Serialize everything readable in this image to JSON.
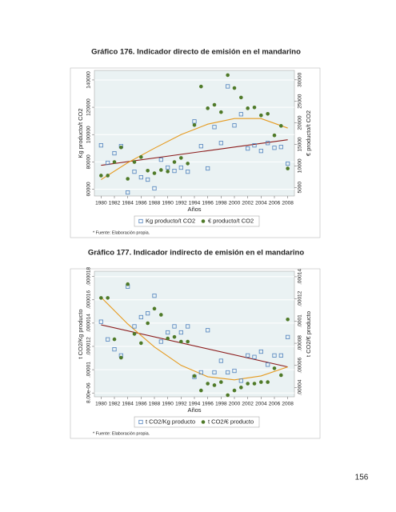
{
  "chart_data": [
    {
      "type": "scatter",
      "title": "Gráfico 176. Indicador directo de emisión en el mandarino",
      "x_label": "Años",
      "y_label": "Kg producto/t CO2",
      "y2_label": "€ producto/t CO2",
      "note": "* Fuente: Elaboración propia.",
      "x": [
        1980,
        1981,
        1982,
        1983,
        1984,
        1985,
        1986,
        1987,
        1988,
        1989,
        1990,
        1991,
        1992,
        1993,
        1994,
        1995,
        1996,
        1997,
        1998,
        1999,
        2000,
        2001,
        2002,
        2003,
        2004,
        2005,
        2006,
        2007,
        2008
      ],
      "xlim": [
        1979,
        2009
      ],
      "xticks": [
        1980,
        1982,
        1984,
        1986,
        1988,
        1990,
        1992,
        1994,
        1996,
        1998,
        2000,
        2002,
        2004,
        2006,
        2008
      ],
      "ylim": [
        55000,
        147000
      ],
      "yticks": [
        60000,
        80000,
        100000,
        120000,
        140000
      ],
      "y2lim": [
        3000,
        32200
      ],
      "y2ticks": [
        5000,
        10000,
        15000,
        20000,
        25000,
        30000
      ],
      "grid": true,
      "series": [
        {
          "name": "Kg producto/t CO2",
          "color": "#4f81bd",
          "marker": "square",
          "axis": "y",
          "values": [
            92100,
            79300,
            86300,
            91500,
            57600,
            72800,
            68700,
            67000,
            60600,
            81600,
            75800,
            73400,
            75800,
            72800,
            109600,
            91500,
            75200,
            105500,
            93800,
            135300,
            106700,
            114900,
            89800,
            92100,
            88000,
            93800,
            90300,
            90900,
            78700
          ]
        },
        {
          "name": "€ producto/t CO2",
          "color": "#4f7a28",
          "marker": "circle",
          "axis": "y2",
          "values": [
            7750,
            7750,
            10900,
            14300,
            7000,
            10900,
            12050,
            8900,
            8300,
            9050,
            8700,
            10900,
            11850,
            10550,
            19500,
            28450,
            23400,
            24200,
            22500,
            31100,
            28100,
            25900,
            23400,
            23600,
            21750,
            22100,
            17100,
            19300,
            9400
          ]
        }
      ],
      "fits": [
        {
          "color": "#8b1a1a",
          "axis": "y",
          "x": [
            1980,
            2008
          ],
          "values": [
            77500,
            96200
          ]
        },
        {
          "color": "#e69a1e",
          "axis": "y2",
          "x": [
            1980,
            1984,
            1988,
            1992,
            1996,
            2000,
            2004,
            2008
          ],
          "values": [
            6800,
            10740,
            14100,
            17270,
            19700,
            21000,
            21000,
            18800
          ]
        }
      ]
    },
    {
      "type": "scatter",
      "title": "Gráfico 177. Indicador indirecto de emisión en el mandarino",
      "x_label": "Años",
      "y_label": "t CO2/Kg producto",
      "y2_label": "t CO2/€ producto",
      "note": "* Fuente: Elaboración propia.",
      "x": [
        1980,
        1981,
        1982,
        1983,
        1984,
        1985,
        1986,
        1987,
        1988,
        1989,
        1990,
        1991,
        1992,
        1993,
        1994,
        1995,
        1996,
        1997,
        1998,
        1999,
        2000,
        2001,
        2002,
        2003,
        2004,
        2005,
        2006,
        2007,
        2008
      ],
      "xlim": [
        1979,
        2009
      ],
      "xticks": [
        1980,
        1982,
        1984,
        1986,
        1988,
        1990,
        1992,
        1994,
        1996,
        1998,
        2000,
        2002,
        2004,
        2006,
        2008
      ],
      "ylim": [
        7.67e-06,
        1.846e-05
      ],
      "yticks": [
        {
          "value": 8e-06,
          "label": "8.00e-06"
        },
        {
          "value": 1e-05,
          "label": ".00001"
        },
        {
          "value": 1.2e-05,
          "label": ".000012"
        },
        {
          "value": 1.4e-05,
          "label": ".000014"
        },
        {
          "value": 1.6e-05,
          "label": ".000016"
        },
        {
          "value": 1.8e-05,
          "label": ".000018"
        }
      ],
      "y2lim": [
        3.17e-05,
        0.000145
      ],
      "y2ticks": [
        {
          "value": 4e-05,
          "label": ".00004"
        },
        {
          "value": 6e-05,
          "label": ".00006"
        },
        {
          "value": 8e-05,
          "label": ".00008"
        },
        {
          "value": 0.0001,
          "label": ".0001"
        },
        {
          "value": 0.00012,
          "label": ".00012"
        },
        {
          "value": 0.00014,
          "label": ".00014"
        }
      ],
      "grid": true,
      "series": [
        {
          "name": "t CO2/Kg producto",
          "color": "#4f81bd",
          "marker": "square",
          "axis": "y",
          "values": [
            1.412e-05,
            1.26e-05,
            1.175e-05,
            1.122e-05,
            1.714e-05,
            1.372e-05,
            1.451e-05,
            1.484e-05,
            1.635e-05,
            1.241e-05,
            1.32e-05,
            1.372e-05,
            1.32e-05,
            1.372e-05,
            9.38e-06,
            9.77e-06,
            1.339e-05,
            9.77e-06,
            1.076e-05,
            9.77e-06,
            9.9e-06,
            9.05e-06,
            1.122e-05,
            1.109e-05,
            1.155e-05,
            1.043e-05,
            1.122e-05,
            1.122e-05,
            1.28e-05
          ]
        },
        {
          "name": "t CO2/€ producto",
          "color": "#4f7a28",
          "marker": "circle",
          "axis": "y2",
          "values": [
            0.0001209,
            0.0001209,
            8.36e-05,
            6.7e-05,
            0.0001333,
            8.84e-05,
            8.01e-05,
            9.81e-05,
            0.0001112,
            0.0001057,
            8.43e-05,
            8.57e-05,
            8.15e-05,
            8.15e-05,
            5.05e-05,
            3.74e-05,
            4.36e-05,
            4.22e-05,
            4.5e-05,
            3.32e-05,
            3.74e-05,
            4.01e-05,
            4.36e-05,
            4.36e-05,
            4.5e-05,
            4.5e-05,
            5.74e-05,
            5.12e-05,
            0.0001015
          ]
        }
      ],
      "fits": [
        {
          "color": "#8b1a1a",
          "axis": "y",
          "x": [
            1980,
            2008
          ],
          "values": [
            1.385e-05,
            1.024e-05
          ]
        },
        {
          "color": "#e69a1e",
          "axis": "y2",
          "x": [
            1980,
            1984,
            1988,
            1992,
            1996,
            2000,
            2004,
            2008
          ],
          "values": [
            0.0001215,
            9.74e-05,
            7.67e-05,
            6.01e-05,
            4.98e-05,
            4.7e-05,
            5.05e-05,
            5.87e-05
          ]
        }
      ]
    }
  ],
  "page_number": "156"
}
